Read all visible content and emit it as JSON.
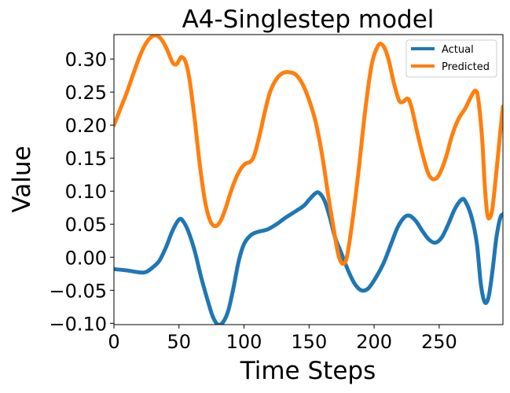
{
  "chart_data": {
    "type": "line",
    "title": "A4-Singlestep model",
    "xlabel": "Time Steps",
    "ylabel": "Value",
    "xlim": [
      0,
      299
    ],
    "ylim": [
      -0.102,
      0.337
    ],
    "xticks": [
      0,
      50,
      100,
      150,
      200,
      250
    ],
    "xtick_labels": [
      "0",
      "50",
      "100",
      "150",
      "200",
      "250"
    ],
    "yticks": [
      -0.1,
      -0.05,
      0.0,
      0.05,
      0.1,
      0.15,
      0.2,
      0.25,
      0.3
    ],
    "ytick_labels": [
      "−0.10",
      "−0.05",
      "0.00",
      "0.05",
      "0.10",
      "0.15",
      "0.20",
      "0.25",
      "0.30"
    ],
    "grid": false,
    "legend": {
      "position": "top-right"
    },
    "series": [
      {
        "name": "Actual",
        "color": "#1f77b4",
        "points": [
          [
            0,
            -0.018
          ],
          [
            10,
            -0.02
          ],
          [
            20,
            -0.023
          ],
          [
            25,
            -0.022
          ],
          [
            30,
            -0.015
          ],
          [
            35,
            -0.005
          ],
          [
            40,
            0.015
          ],
          [
            45,
            0.04
          ],
          [
            50,
            0.057
          ],
          [
            53,
            0.055
          ],
          [
            57,
            0.04
          ],
          [
            62,
            0.01
          ],
          [
            67,
            -0.03
          ],
          [
            72,
            -0.065
          ],
          [
            76,
            -0.09
          ],
          [
            80,
            -0.102
          ],
          [
            84,
            -0.098
          ],
          [
            88,
            -0.08
          ],
          [
            92,
            -0.045
          ],
          [
            96,
            -0.005
          ],
          [
            100,
            0.02
          ],
          [
            105,
            0.033
          ],
          [
            110,
            0.038
          ],
          [
            118,
            0.042
          ],
          [
            125,
            0.05
          ],
          [
            132,
            0.06
          ],
          [
            140,
            0.07
          ],
          [
            146,
            0.078
          ],
          [
            150,
            0.087
          ],
          [
            155,
            0.097
          ],
          [
            158,
            0.097
          ],
          [
            162,
            0.085
          ],
          [
            166,
            0.06
          ],
          [
            170,
            0.03
          ],
          [
            175,
            0.005
          ],
          [
            180,
            -0.02
          ],
          [
            185,
            -0.04
          ],
          [
            190,
            -0.05
          ],
          [
            195,
            -0.048
          ],
          [
            200,
            -0.035
          ],
          [
            207,
            -0.01
          ],
          [
            213,
            0.02
          ],
          [
            218,
            0.045
          ],
          [
            223,
            0.06
          ],
          [
            227,
            0.063
          ],
          [
            232,
            0.055
          ],
          [
            237,
            0.04
          ],
          [
            242,
            0.027
          ],
          [
            247,
            0.022
          ],
          [
            252,
            0.03
          ],
          [
            257,
            0.05
          ],
          [
            262,
            0.073
          ],
          [
            267,
            0.087
          ],
          [
            270,
            0.085
          ],
          [
            275,
            0.06
          ],
          [
            279,
            0.02
          ],
          [
            282,
            -0.04
          ],
          [
            285,
            -0.068
          ],
          [
            288,
            -0.06
          ],
          [
            291,
            -0.02
          ],
          [
            294,
            0.03
          ],
          [
            297,
            0.06
          ],
          [
            299,
            0.065
          ]
        ]
      },
      {
        "name": "Predicted",
        "color": "#ff7f0e",
        "points": [
          [
            0,
            0.2
          ],
          [
            5,
            0.225
          ],
          [
            10,
            0.25
          ],
          [
            15,
            0.278
          ],
          [
            20,
            0.305
          ],
          [
            25,
            0.325
          ],
          [
            30,
            0.335
          ],
          [
            35,
            0.333
          ],
          [
            40,
            0.318
          ],
          [
            45,
            0.295
          ],
          [
            48,
            0.292
          ],
          [
            50,
            0.298
          ],
          [
            52,
            0.303
          ],
          [
            55,
            0.296
          ],
          [
            58,
            0.27
          ],
          [
            62,
            0.21
          ],
          [
            66,
            0.14
          ],
          [
            70,
            0.085
          ],
          [
            74,
            0.055
          ],
          [
            78,
            0.047
          ],
          [
            82,
            0.055
          ],
          [
            86,
            0.075
          ],
          [
            90,
            0.1
          ],
          [
            95,
            0.125
          ],
          [
            100,
            0.14
          ],
          [
            105,
            0.145
          ],
          [
            108,
            0.155
          ],
          [
            112,
            0.185
          ],
          [
            116,
            0.22
          ],
          [
            120,
            0.25
          ],
          [
            125,
            0.27
          ],
          [
            130,
            0.279
          ],
          [
            135,
            0.28
          ],
          [
            140,
            0.276
          ],
          [
            145,
            0.262
          ],
          [
            150,
            0.238
          ],
          [
            155,
            0.205
          ],
          [
            160,
            0.155
          ],
          [
            165,
            0.09
          ],
          [
            170,
            0.03
          ],
          [
            173,
            0.0
          ],
          [
            176,
            -0.01
          ],
          [
            179,
            0.0
          ],
          [
            183,
            0.05
          ],
          [
            188,
            0.13
          ],
          [
            193,
            0.22
          ],
          [
            198,
            0.29
          ],
          [
            203,
            0.32
          ],
          [
            207,
            0.32
          ],
          [
            211,
            0.3
          ],
          [
            215,
            0.265
          ],
          [
            219,
            0.238
          ],
          [
            222,
            0.235
          ],
          [
            226,
            0.24
          ],
          [
            229,
            0.225
          ],
          [
            233,
            0.19
          ],
          [
            238,
            0.15
          ],
          [
            242,
            0.125
          ],
          [
            246,
            0.118
          ],
          [
            250,
            0.125
          ],
          [
            255,
            0.15
          ],
          [
            260,
            0.185
          ],
          [
            265,
            0.21
          ],
          [
            270,
            0.225
          ],
          [
            275,
            0.245
          ],
          [
            278,
            0.252
          ],
          [
            280,
            0.24
          ],
          [
            283,
            0.18
          ],
          [
            285,
            0.11
          ],
          [
            287,
            0.065
          ],
          [
            289,
            0.06
          ],
          [
            291,
            0.075
          ],
          [
            294,
            0.13
          ],
          [
            297,
            0.19
          ],
          [
            299,
            0.228
          ]
        ]
      }
    ]
  }
}
